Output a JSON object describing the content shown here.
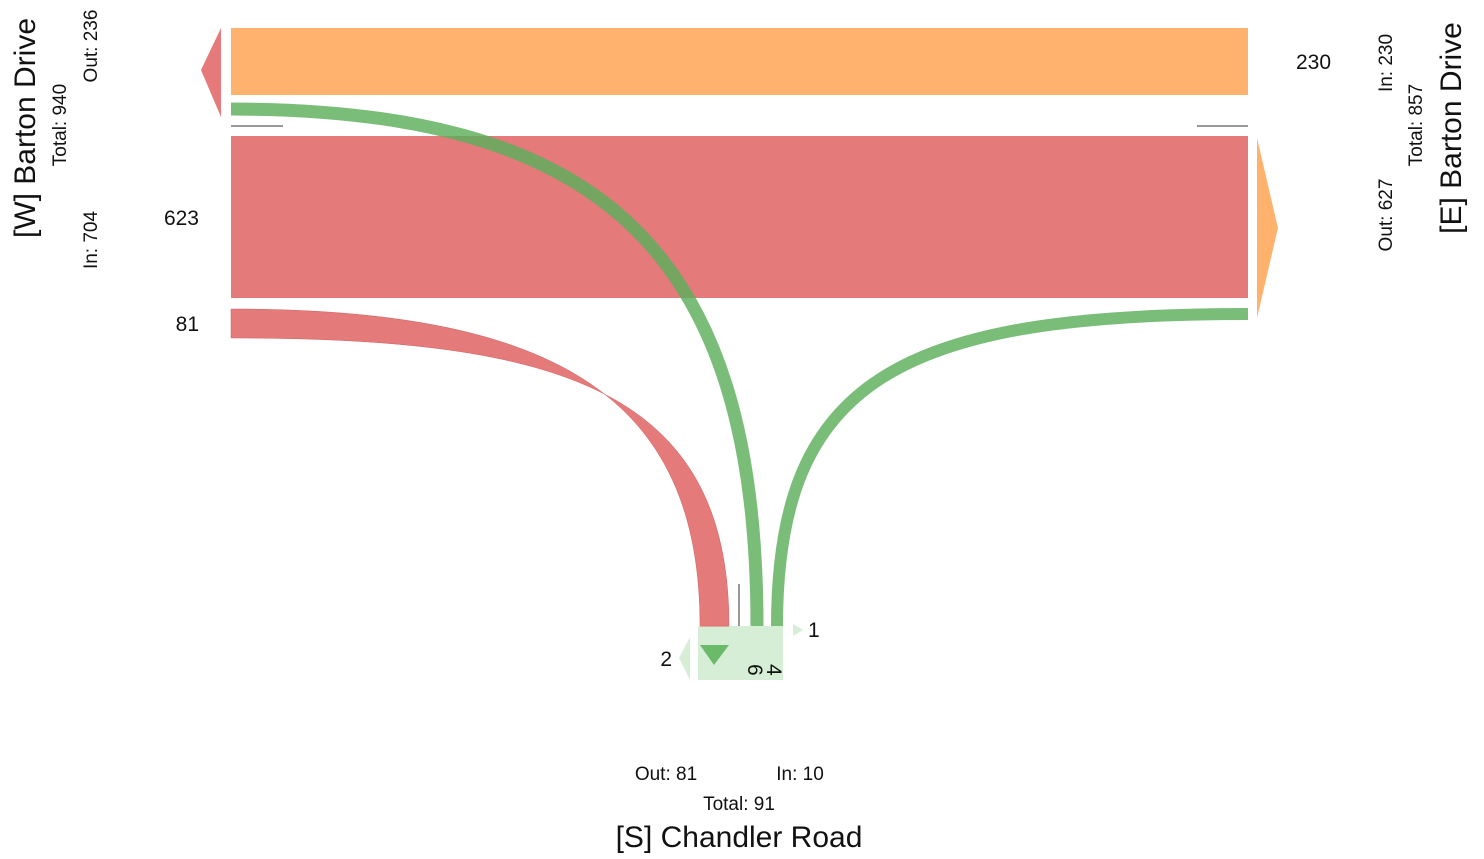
{
  "colors": {
    "west": "#e06666",
    "east": "#ffa95a",
    "south": "#6aba6a",
    "south_light": "#d3ecd3",
    "divider": "#999999"
  },
  "roads": {
    "west": {
      "name": "[W] Barton Drive",
      "total": "Total: 940",
      "in": "In: 704",
      "out": "Out: 236"
    },
    "east": {
      "name": "[E] Barton Drive",
      "total": "Total: 857",
      "in": "In: 230",
      "out": "Out: 627"
    },
    "south": {
      "name": "[S] Chandler Road",
      "total": "Total: 91",
      "in": "In: 10",
      "out": "Out: 81"
    }
  },
  "flow_labels": {
    "west_through": "623",
    "west_to_south": "81",
    "east_through": "230",
    "south_uturn": "2",
    "south_right": "1",
    "south_to_west": "6",
    "south_to_east": "4"
  },
  "chart_data": {
    "type": "sankey",
    "nodes": [
      "[W] Barton Drive",
      "[E] Barton Drive",
      "[S] Chandler Road"
    ],
    "flows": [
      {
        "from": "[W] Barton Drive",
        "to": "[E] Barton Drive",
        "value": 623
      },
      {
        "from": "[W] Barton Drive",
        "to": "[S] Chandler Road",
        "value": 81
      },
      {
        "from": "[E] Barton Drive",
        "to": "[W] Barton Drive",
        "value": 230
      },
      {
        "from": "[S] Chandler Road",
        "to": "[W] Barton Drive",
        "value": 6
      },
      {
        "from": "[S] Chandler Road",
        "to": "[E] Barton Drive",
        "value": 4
      },
      {
        "from": "[S] Chandler Road",
        "to": "[S] Chandler Road",
        "value": 2
      },
      {
        "from": "[S] Chandler Road",
        "to": "",
        "value": 1
      }
    ],
    "totals": {
      "[W] Barton Drive": {
        "in": 704,
        "out": 236,
        "total": 940
      },
      "[E] Barton Drive": {
        "in": 230,
        "out": 627,
        "total": 857
      },
      "[S] Chandler Road": {
        "in": 10,
        "out": 81,
        "total": 91
      }
    }
  }
}
